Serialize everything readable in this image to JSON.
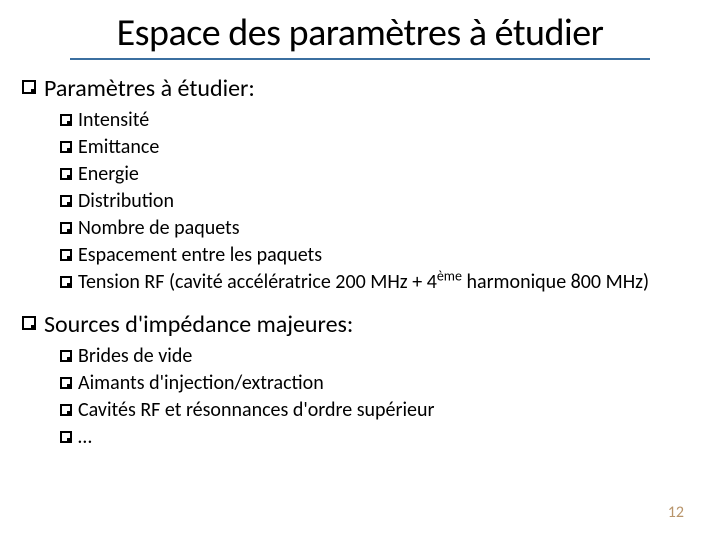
{
  "title": "Espace des paramètres à étudier",
  "sections": [
    {
      "heading": "Paramètres à étudier:",
      "items": [
        "Intensité",
        "Emittance",
        "Energie",
        "Distribution",
        "Nombre de paquets",
        "Espacement entre les paquets",
        "Tension RF (cavité accélératrice 200 MHz + 4ème harmonique 800 MHz)"
      ]
    },
    {
      "heading": "Sources d'impédance majeures:",
      "items": [
        "Brides de vide",
        "Aimants d'injection/extraction",
        "Cavités RF et résonnances d'ordre supérieur",
        "…"
      ]
    }
  ],
  "pageNumber": "12",
  "colors": {
    "underline": "#3b6fa0",
    "pageNumber": "#b8946a",
    "text": "#000000",
    "background": "#ffffff"
  }
}
